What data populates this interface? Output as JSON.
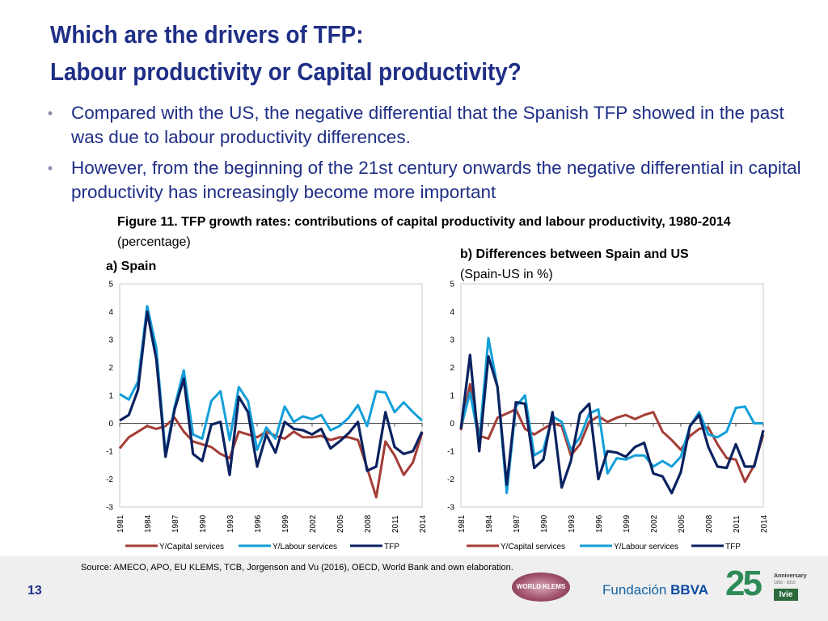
{
  "slide": {
    "title_line1": "Which are the drivers of TFP:",
    "title_line2": "Labour productivity or Capital productivity?",
    "bullets": [
      "Compared with the US, the negative differential that the Spanish TFP showed in the past was due to labour productivity differences.",
      "However, from the beginning of the 21st century onwards the negative differential in capital productivity has increasingly become more important"
    ],
    "bullet_symbol": "•",
    "figure_caption_bold": "Figure 11. TFP growth rates: contributions of capital productivity and  labour productivity, 1980-2014",
    "figure_caption_rest": " (percentage)",
    "panel_a_title": "a) Spain",
    "panel_b_title_bold": "b) Differences between Spain and US",
    "panel_b_title_sub": "(Spain-US in %)",
    "source": "Source:  AMECO, APO, EU KLEMS, TCB, Jorgenson and  Vu (2016), OECD, World Bank and own elaboration.",
    "page_number": "13",
    "logos": {
      "worldklems": "WORLD KLEMS",
      "fundacion": "Fundación",
      "bbva": "BBVA",
      "anniv_number": "25",
      "anniv_label": "Anniversary",
      "anniv_years": "1990 - 2015",
      "ivie": "Ivie"
    }
  },
  "chart_data": [
    {
      "type": "line",
      "title": "a) Spain",
      "ylim": [
        -3,
        5
      ],
      "yticks": [
        -3,
        -2,
        -1,
        0,
        1,
        2,
        3,
        4,
        5
      ],
      "x_tick_labels": [
        "1981",
        "1984",
        "1987",
        "1990",
        "1993",
        "1996",
        "1999",
        "2002",
        "2005",
        "2008",
        "2011",
        "2014"
      ],
      "x": [
        1981,
        1982,
        1983,
        1984,
        1985,
        1986,
        1987,
        1988,
        1989,
        1990,
        1991,
        1992,
        1993,
        1994,
        1995,
        1996,
        1997,
        1998,
        1999,
        2000,
        2001,
        2002,
        2003,
        2004,
        2005,
        2006,
        2007,
        2008,
        2009,
        2010,
        2011,
        2012,
        2013,
        2014
      ],
      "series": [
        {
          "name": "Y/Capital services",
          "color": "#a33d35",
          "values": [
            -0.9,
            -0.5,
            -0.3,
            -0.1,
            -0.2,
            -0.1,
            0.2,
            -0.3,
            -0.65,
            -0.75,
            -0.85,
            -1.1,
            -1.25,
            -0.3,
            -0.4,
            -0.5,
            -0.3,
            -0.45,
            -0.55,
            -0.3,
            -0.5,
            -0.5,
            -0.45,
            -0.6,
            -0.5,
            -0.5,
            -0.6,
            -1.6,
            -2.65,
            -0.65,
            -1.15,
            -1.85,
            -1.4,
            -0.35
          ]
        },
        {
          "name": "Y/Labour services",
          "color": "#129fd9",
          "values": [
            1.05,
            0.85,
            1.5,
            4.2,
            2.7,
            -1.1,
            0.6,
            1.9,
            -0.4,
            -0.55,
            0.8,
            1.15,
            -0.6,
            1.3,
            0.8,
            -0.95,
            -0.15,
            -0.55,
            0.6,
            0.05,
            0.25,
            0.15,
            0.3,
            -0.25,
            -0.1,
            0.2,
            0.65,
            -0.1,
            1.15,
            1.1,
            0.4,
            0.75,
            0.4,
            0.1
          ]
        },
        {
          "name": "TFP",
          "color": "#0a2260",
          "values": [
            0.1,
            0.3,
            1.2,
            4.0,
            2.3,
            -1.2,
            0.5,
            1.6,
            -1.1,
            -1.35,
            -0.05,
            0.05,
            -1.85,
            0.95,
            0.4,
            -1.55,
            -0.4,
            -1.05,
            0.05,
            -0.2,
            -0.25,
            -0.4,
            -0.2,
            -0.9,
            -0.65,
            -0.35,
            0.05,
            -1.7,
            -1.55,
            0.4,
            -0.85,
            -1.1,
            -1.0,
            -0.3
          ]
        }
      ]
    },
    {
      "type": "line",
      "title": "b) Differences between Spain and US (Spain-US in %)",
      "ylim": [
        -3,
        5
      ],
      "yticks": [
        -3,
        -2,
        -1,
        0,
        1,
        2,
        3,
        4,
        5
      ],
      "x_tick_labels": [
        "1981",
        "1984",
        "1987",
        "1990",
        "1993",
        "1996",
        "1999",
        "2002",
        "2005",
        "2008",
        "2011",
        "2014"
      ],
      "x": [
        1981,
        1982,
        1983,
        1984,
        1985,
        1986,
        1987,
        1988,
        1989,
        1990,
        1991,
        1992,
        1993,
        1994,
        1995,
        1996,
        1997,
        1998,
        1999,
        2000,
        2001,
        2002,
        2003,
        2004,
        2005,
        2006,
        2007,
        2008,
        2009,
        2010,
        2011,
        2012,
        2013,
        2014
      ],
      "series": [
        {
          "name": "Y/Capital services",
          "color": "#a33d35",
          "values": [
            -0.25,
            1.4,
            -0.45,
            -0.55,
            0.2,
            0.35,
            0.5,
            -0.2,
            -0.4,
            -0.2,
            0.0,
            -0.1,
            -1.15,
            -0.75,
            0.05,
            0.25,
            0.05,
            0.2,
            0.3,
            0.15,
            0.3,
            0.4,
            -0.3,
            -0.6,
            -0.95,
            -0.45,
            -0.2,
            -0.15,
            -0.75,
            -1.25,
            -1.3,
            -2.1,
            -1.5,
            -0.4
          ]
        },
        {
          "name": "Y/Labour services",
          "color": "#129fd9",
          "values": [
            -0.15,
            1.1,
            -0.65,
            3.05,
            1.3,
            -2.5,
            0.6,
            1.0,
            -1.15,
            -0.95,
            0.25,
            0.05,
            -0.95,
            -0.5,
            0.35,
            0.5,
            -1.8,
            -1.25,
            -1.3,
            -1.15,
            -1.15,
            -1.55,
            -1.35,
            -1.55,
            -1.2,
            -0.1,
            0.4,
            -0.4,
            -0.5,
            -0.3,
            0.55,
            0.6,
            0.0,
            0.0
          ]
        },
        {
          "name": "TFP",
          "color": "#0a2260",
          "values": [
            -0.2,
            2.45,
            -1.0,
            2.4,
            1.3,
            -2.2,
            0.75,
            0.7,
            -1.6,
            -1.3,
            0.4,
            -2.3,
            -1.35,
            0.35,
            0.7,
            -2.0,
            -1.0,
            -1.05,
            -1.2,
            -0.85,
            -0.7,
            -1.8,
            -1.9,
            -2.5,
            -1.75,
            -0.1,
            0.3,
            -0.85,
            -1.55,
            -1.6,
            -0.75,
            -1.55,
            -1.55,
            -0.25
          ]
        }
      ]
    }
  ]
}
